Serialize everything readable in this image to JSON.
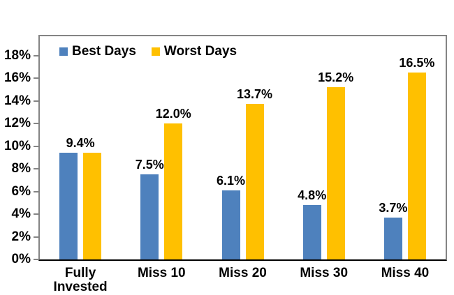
{
  "chart_data": {
    "type": "bar",
    "title": "",
    "categories": [
      "Fully Invested",
      "Miss 10",
      "Miss 20",
      "Miss 30",
      "Miss 40"
    ],
    "series": [
      {
        "name": "Best Days",
        "color": "#4E81BD",
        "values": [
          9.4,
          7.5,
          6.1,
          4.8,
          3.7
        ]
      },
      {
        "name": "Worst Days",
        "color": "#FFC000",
        "values": [
          9.4,
          12.0,
          13.7,
          15.2,
          16.5
        ]
      }
    ],
    "data_labels": [
      {
        "group": 0,
        "anchor": "group",
        "text": "9.4%"
      },
      {
        "group": 1,
        "anchor": "series0",
        "text": "7.5%"
      },
      {
        "group": 1,
        "anchor": "series1",
        "text": "12.0%"
      },
      {
        "group": 2,
        "anchor": "series0",
        "text": "6.1%"
      },
      {
        "group": 2,
        "anchor": "series1",
        "text": "13.7%"
      },
      {
        "group": 3,
        "anchor": "series0",
        "text": "4.8%"
      },
      {
        "group": 3,
        "anchor": "series1",
        "text": "15.2%"
      },
      {
        "group": 4,
        "anchor": "series0",
        "text": "3.7%"
      },
      {
        "group": 4,
        "anchor": "series1",
        "text": "16.5%"
      }
    ],
    "yticks": [
      {
        "value": 0,
        "label": "0%"
      },
      {
        "value": 2,
        "label": "2%"
      },
      {
        "value": 4,
        "label": "4%"
      },
      {
        "value": 6,
        "label": "6%"
      },
      {
        "value": 8,
        "label": "8%"
      },
      {
        "value": 10,
        "label": "10%"
      },
      {
        "value": 12,
        "label": "12%"
      },
      {
        "value": 14,
        "label": "14%"
      },
      {
        "value": 16,
        "label": "16%"
      },
      {
        "value": 18,
        "label": "18%"
      }
    ],
    "ylim": [
      0,
      19.7
    ],
    "xlabel": "",
    "ylabel": "",
    "grid": false,
    "legend": [
      "Best Days",
      "Worst Days"
    ],
    "legend_position": "top-left-inside",
    "colors": {
      "best_days": "#4E81BD",
      "worst_days": "#FFC000",
      "plot_border": "#848484",
      "baseline": "#000000",
      "text": "#000000"
    }
  }
}
